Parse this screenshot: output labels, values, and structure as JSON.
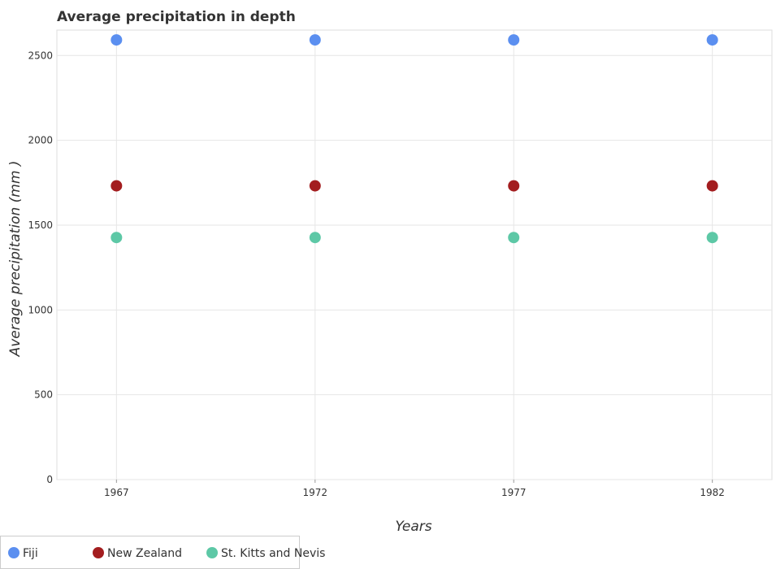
{
  "chart_data": {
    "type": "scatter",
    "title": "Average precipitation in depth",
    "xlabel": "Years",
    "ylabel": "Average precipitation (mm )",
    "categories": [
      "1967",
      "1972",
      "1977",
      "1982"
    ],
    "x": [
      1967,
      1972,
      1977,
      1982
    ],
    "xlim": [
      1965.5,
      1983.5
    ],
    "ylim": [
      0,
      2650
    ],
    "yticks": [
      0,
      500,
      1000,
      1500,
      2000,
      2500
    ],
    "grid": true,
    "legend_position": "bottom-left",
    "series": [
      {
        "name": "Fiji",
        "color": "#5b8ff0",
        "values": [
          2592,
          2592,
          2592,
          2592
        ]
      },
      {
        "name": "New Zealand",
        "color": "#a31d1f",
        "values": [
          1732,
          1732,
          1732,
          1732
        ]
      },
      {
        "name": "St. Kitts and Nevis",
        "color": "#5dc8a6",
        "values": [
          1427,
          1427,
          1427,
          1427
        ]
      }
    ]
  }
}
